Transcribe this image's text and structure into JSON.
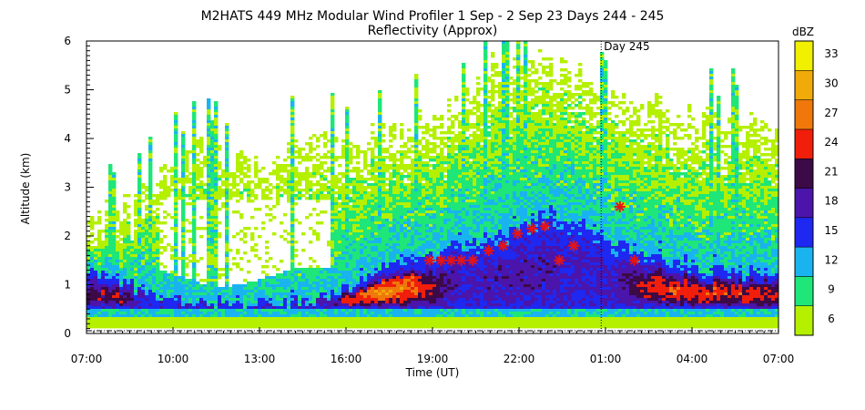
{
  "chart_data": {
    "type": "heatmap",
    "title": "M2HATS 449 MHz Modular Wind Profiler    1 Sep -  2 Sep 23 Days 244 - 245",
    "subtitle": "Reflectivity (Approx)",
    "xlabel": "Time (UT)",
    "ylabel": "Altitude (km)",
    "x_ticks": [
      "07:00",
      "10:00",
      "13:00",
      "16:00",
      "19:00",
      "22:00",
      "01:00",
      "04:00",
      "07:00"
    ],
    "x_tick_hours": [
      0,
      3,
      6,
      9,
      12,
      15,
      18,
      21,
      24
    ],
    "xlim_hours": [
      0,
      24
    ],
    "y_ticks": [
      "0",
      "1",
      "2",
      "3",
      "4",
      "5",
      "6"
    ],
    "ylim": [
      0,
      6
    ],
    "annotation": {
      "text": "Day 245",
      "x_hours": 17.85
    },
    "colorbar": {
      "label": "dBZ",
      "ticks": [
        "6",
        "9",
        "12",
        "15",
        "18",
        "21",
        "24",
        "27",
        "30",
        "33"
      ],
      "levels": [
        6,
        9,
        12,
        15,
        18,
        21,
        24,
        27,
        30,
        33
      ],
      "colors": [
        "#b4f000",
        "#1ee678",
        "#19b4f0",
        "#1e28f0",
        "#4b14aa",
        "#3c0a46",
        "#f01e0a",
        "#f0780a",
        "#f0aa0a",
        "#f0f000"
      ]
    },
    "markers": {
      "symbol": "asterisk",
      "color": "#e61414",
      "points": [
        {
          "x": 11.9,
          "y": 1.5
        },
        {
          "x": 12.3,
          "y": 1.5
        },
        {
          "x": 12.65,
          "y": 1.5
        },
        {
          "x": 13.0,
          "y": 1.5
        },
        {
          "x": 13.4,
          "y": 1.5
        },
        {
          "x": 13.95,
          "y": 1.7
        },
        {
          "x": 14.45,
          "y": 1.8
        },
        {
          "x": 14.95,
          "y": 2.05
        },
        {
          "x": 15.45,
          "y": 2.15
        },
        {
          "x": 15.9,
          "y": 2.2
        },
        {
          "x": 16.4,
          "y": 1.5
        },
        {
          "x": 16.9,
          "y": 1.8
        },
        {
          "x": 18.5,
          "y": 2.6
        },
        {
          "x": 19.0,
          "y": 1.5
        }
      ]
    },
    "grid": false,
    "legend": "right colorbar"
  }
}
